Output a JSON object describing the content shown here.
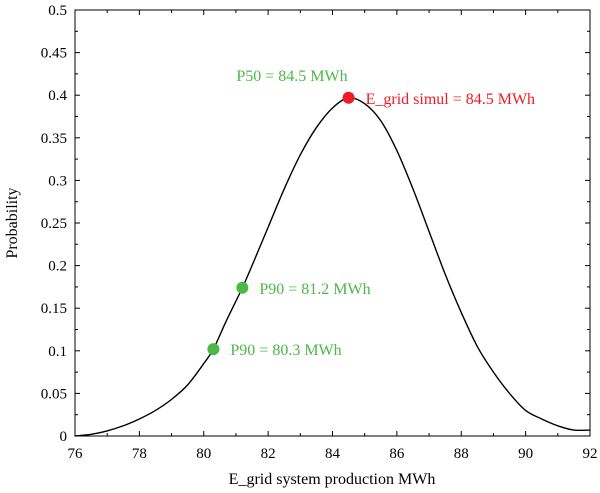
{
  "chart_data": {
    "type": "line",
    "xlabel": "E_grid system production MWh",
    "ylabel": "Probability",
    "xlim": [
      76,
      92
    ],
    "ylim": [
      0,
      0.5
    ],
    "xticks": [
      76,
      78,
      80,
      82,
      84,
      86,
      88,
      90,
      92
    ],
    "yticks": [
      0,
      0.05,
      0.1,
      0.15,
      0.2,
      0.25,
      0.3,
      0.35,
      0.4,
      0.45,
      0.5
    ],
    "ytick_labels": [
      "0",
      "0.05",
      "0.1",
      "0.15",
      "0.2",
      "0.25",
      "0.3",
      "0.35",
      "0.4",
      "0.45",
      "0.5"
    ],
    "grid": false,
    "curve": {
      "color": "#000000",
      "points": [
        [
          76.0,
          0.0
        ],
        [
          76.5,
          0.002
        ],
        [
          77.0,
          0.006
        ],
        [
          77.5,
          0.012
        ],
        [
          78.0,
          0.02
        ],
        [
          78.5,
          0.03
        ],
        [
          79.0,
          0.043
        ],
        [
          79.5,
          0.06
        ],
        [
          80.0,
          0.085
        ],
        [
          80.3,
          0.102
        ],
        [
          80.7,
          0.135
        ],
        [
          81.2,
          0.174
        ],
        [
          81.5,
          0.2
        ],
        [
          82.0,
          0.245
        ],
        [
          82.5,
          0.29
        ],
        [
          83.0,
          0.33
        ],
        [
          83.5,
          0.362
        ],
        [
          84.0,
          0.385
        ],
        [
          84.5,
          0.397
        ],
        [
          85.0,
          0.39
        ],
        [
          85.5,
          0.37
        ],
        [
          86.0,
          0.335
        ],
        [
          86.5,
          0.29
        ],
        [
          87.0,
          0.24
        ],
        [
          87.5,
          0.19
        ],
        [
          88.0,
          0.145
        ],
        [
          88.5,
          0.105
        ],
        [
          89.0,
          0.075
        ],
        [
          89.5,
          0.05
        ],
        [
          90.0,
          0.03
        ],
        [
          90.5,
          0.02
        ],
        [
          91.0,
          0.012
        ],
        [
          91.5,
          0.007
        ],
        [
          92.0,
          0.007
        ]
      ]
    },
    "markers": [
      {
        "x": 84.5,
        "y": 0.397,
        "color": "#ee1c25",
        "label": "E_grid simul = 84.5 MWh",
        "label_position": "right"
      },
      {
        "x": 84.5,
        "y": 0.397,
        "color": "#4cb847",
        "label": "P50 = 84.5 MWh",
        "label_position": "above-left",
        "draw_point": false
      },
      {
        "x": 81.2,
        "y": 0.174,
        "color": "#4cb847",
        "label": "P90 = 81.2 MWh",
        "label_position": "right"
      },
      {
        "x": 80.3,
        "y": 0.102,
        "color": "#4cb847",
        "label": "P90 = 80.3 MWh",
        "label_position": "right"
      }
    ]
  }
}
